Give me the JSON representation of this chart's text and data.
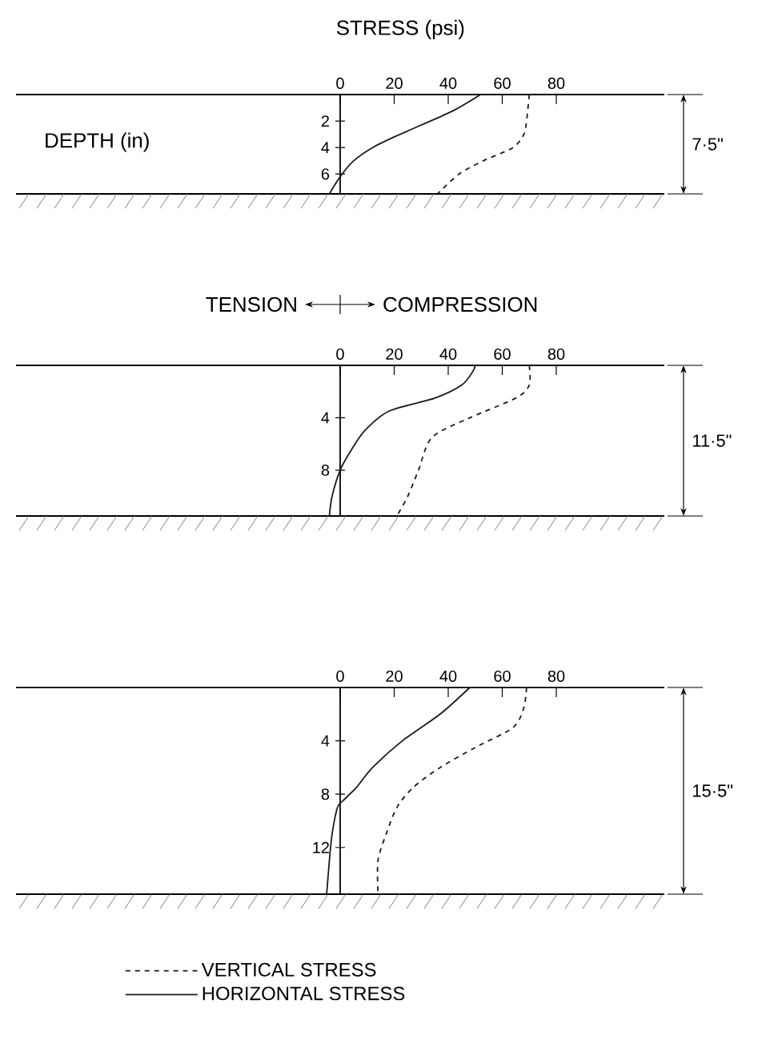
{
  "chart_data": [
    {
      "type": "line",
      "xlabel": "STRESS (psi)",
      "ylabel": "DEPTH (in)",
      "xlim": [
        -120,
        120
      ],
      "ylim": [
        7.5,
        0
      ],
      "xticks": [
        0,
        20,
        40,
        60,
        80
      ],
      "yticks": [
        2,
        4,
        6
      ],
      "annotations": [
        "7·5\""
      ],
      "series": [
        {
          "color": "#1a1a1a",
          "line_style": "dashed",
          "x": [
            70,
            69,
            68,
            64,
            53,
            44,
            36
          ],
          "values": [
            0,
            2,
            3,
            4,
            5,
            6,
            7.5
          ]
        },
        {
          "color": "#1a1a1a",
          "line_style": "solid",
          "x": [
            52,
            42,
            30,
            20,
            12,
            5,
            0,
            -4
          ],
          "values": [
            0,
            1.2,
            2.3,
            3.2,
            4,
            5,
            6.2,
            7.5
          ]
        }
      ]
    },
    {
      "type": "line",
      "xlim": [
        -120,
        120
      ],
      "ylim": [
        11.5,
        0
      ],
      "xticks": [
        0,
        20,
        40,
        60,
        80
      ],
      "yticks": [
        4,
        8
      ],
      "annotations": [
        "TENSION",
        "COMPRESSION",
        "11·5\""
      ],
      "series": [
        {
          "color": "#1a1a1a",
          "line_style": "dashed",
          "x": [
            70,
            70,
            65,
            48,
            34,
            29,
            25,
            21
          ],
          "values": [
            0,
            1.5,
            2.5,
            4,
            5.5,
            8,
            10,
            11.5
          ]
        },
        {
          "color": "#1a1a1a",
          "line_style": "solid",
          "x": [
            50,
            49,
            45,
            35,
            18,
            9,
            4,
            0,
            -3,
            -4
          ],
          "values": [
            0,
            0.5,
            1.5,
            2.5,
            3.5,
            5,
            6.5,
            8,
            10,
            11.5
          ]
        }
      ]
    },
    {
      "type": "line",
      "xlim": [
        -120,
        120
      ],
      "ylim": [
        15.5,
        0
      ],
      "xticks": [
        0,
        20,
        40,
        60,
        80
      ],
      "yticks": [
        4,
        8,
        12
      ],
      "annotations": [
        "15·5\""
      ],
      "legend": "bottom",
      "series": [
        {
          "name": "VERTICAL STRESS",
          "color": "#1a1a1a",
          "line_style": "dashed",
          "x": [
            69,
            68,
            64,
            50,
            37,
            27,
            21,
            17,
            14,
            14
          ],
          "values": [
            0,
            1.5,
            3,
            4.5,
            6,
            7.5,
            9,
            11,
            13,
            15.5
          ]
        },
        {
          "name": "HORIZONTAL STRESS",
          "color": "#1a1a1a",
          "line_style": "solid",
          "x": [
            48,
            37,
            23,
            12,
            6,
            1,
            -1,
            -3,
            -4,
            -5
          ],
          "values": [
            0,
            2,
            4,
            6,
            7.5,
            8.5,
            9,
            11,
            13,
            15.5
          ]
        }
      ]
    }
  ]
}
